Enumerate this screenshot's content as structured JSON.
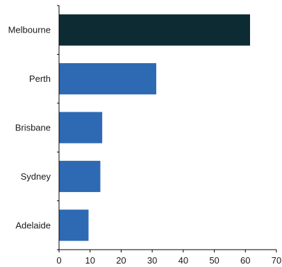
{
  "chart_data": {
    "type": "bar",
    "orientation": "horizontal",
    "title": "",
    "xlabel": "",
    "ylabel": "",
    "categories": [
      "Melbourne",
      "Perth",
      "Brisbane",
      "Sydney",
      "Adelaide"
    ],
    "values": [
      61.5,
      31.3,
      13.9,
      13.3,
      9.5
    ],
    "xlim": [
      0,
      70
    ],
    "xticks": [
      0,
      10,
      20,
      30,
      40,
      50,
      60,
      70
    ],
    "grid": false,
    "legend": "none",
    "colors": [
      "#0d2b33",
      "#2e6ab3",
      "#2e6ab3",
      "#2e6ab3",
      "#2e6ab3"
    ]
  }
}
